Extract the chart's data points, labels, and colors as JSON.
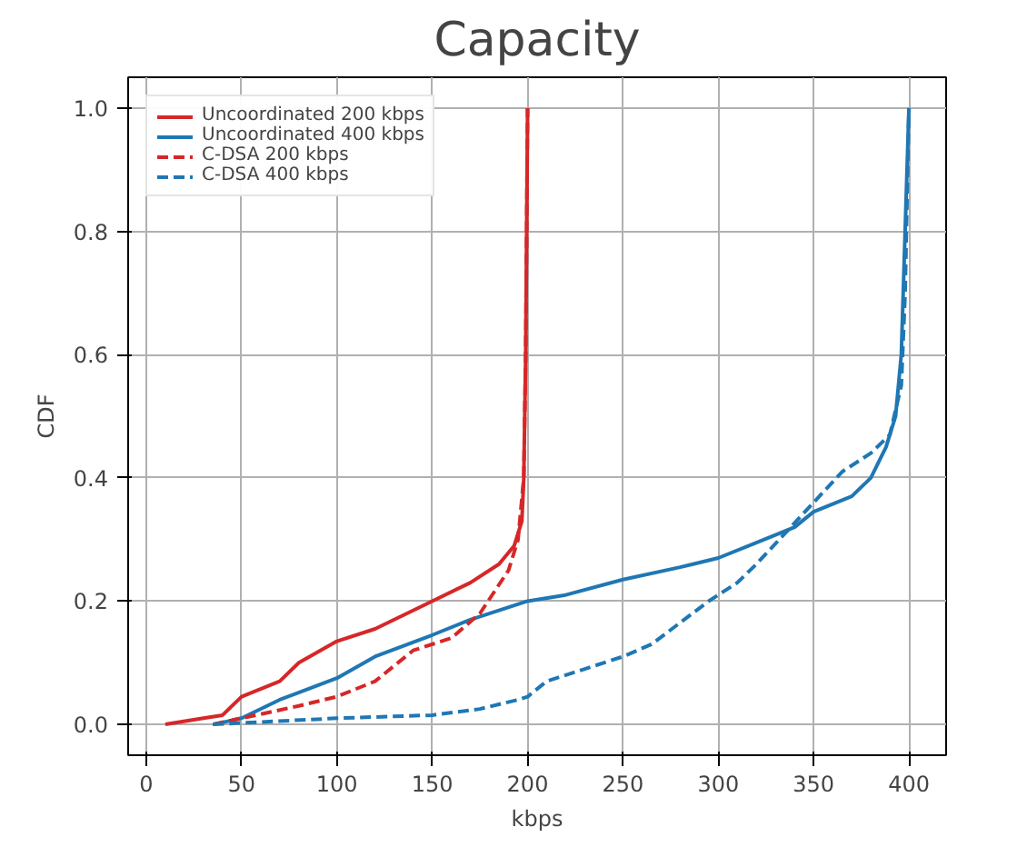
{
  "chart_data": {
    "type": "line",
    "title": "Capacity",
    "xlabel": "kbps",
    "ylabel": "CDF",
    "xlim": [
      -9.5,
      419.5
    ],
    "ylim": [
      -0.05,
      1.05
    ],
    "xticks": [
      0,
      50,
      100,
      150,
      200,
      250,
      300,
      350,
      400
    ],
    "yticks": [
      {
        "value": 0,
        "label": "0.0"
      },
      {
        "value": 0.2,
        "label": "0.2"
      },
      {
        "value": 0.4,
        "label": "0.4"
      },
      {
        "value": 0.6,
        "label": "0.6"
      },
      {
        "value": 0.8,
        "label": "0.8"
      },
      {
        "value": 1,
        "label": "1.0"
      }
    ],
    "grid": true,
    "legend": "top left",
    "marker": "none",
    "series": [
      {
        "name": "Uncoordinated 200 kbps",
        "color": "#d62728",
        "line_style": "solid",
        "x": [
          10,
          30,
          40,
          50,
          70,
          80,
          100,
          120,
          150,
          170,
          185,
          193,
          197,
          198,
          199,
          200
        ],
        "values": [
          0,
          0.01,
          0.015,
          0.045,
          0.07,
          0.1,
          0.135,
          0.155,
          0.2,
          0.23,
          0.26,
          0.29,
          0.33,
          0.4,
          0.6,
          1.0
        ]
      },
      {
        "name": "Uncoordinated 400 kbps",
        "color": "#1f77b4",
        "line_style": "solid",
        "x": [
          35,
          50,
          70,
          100,
          120,
          150,
          170,
          200,
          220,
          250,
          280,
          300,
          320,
          340,
          350,
          370,
          380,
          388,
          393,
          396,
          398,
          400
        ],
        "values": [
          0,
          0.01,
          0.04,
          0.075,
          0.11,
          0.145,
          0.17,
          0.2,
          0.21,
          0.235,
          0.255,
          0.27,
          0.295,
          0.32,
          0.345,
          0.37,
          0.4,
          0.45,
          0.5,
          0.6,
          0.8,
          1.0
        ]
      },
      {
        "name": "C-DSA 200 kbps",
        "color": "#d62728",
        "line_style": "dashed",
        "x": [
          35,
          50,
          80,
          100,
          120,
          140,
          160,
          175,
          190,
          195,
          198,
          199,
          200
        ],
        "values": [
          0,
          0.01,
          0.03,
          0.045,
          0.07,
          0.12,
          0.14,
          0.18,
          0.25,
          0.3,
          0.4,
          0.6,
          1.0
        ]
      },
      {
        "name": "C-DSA 400 kbps",
        "color": "#1f77b4",
        "line_style": "dashed",
        "x": [
          35,
          100,
          150,
          175,
          195,
          200,
          210,
          230,
          250,
          265,
          280,
          295,
          310,
          320,
          335,
          350,
          365,
          380,
          390,
          396,
          398,
          400
        ],
        "values": [
          0,
          0.01,
          0.015,
          0.025,
          0.04,
          0.045,
          0.07,
          0.09,
          0.11,
          0.13,
          0.165,
          0.2,
          0.23,
          0.26,
          0.31,
          0.36,
          0.41,
          0.44,
          0.47,
          0.55,
          0.7,
          1.0
        ]
      }
    ]
  }
}
